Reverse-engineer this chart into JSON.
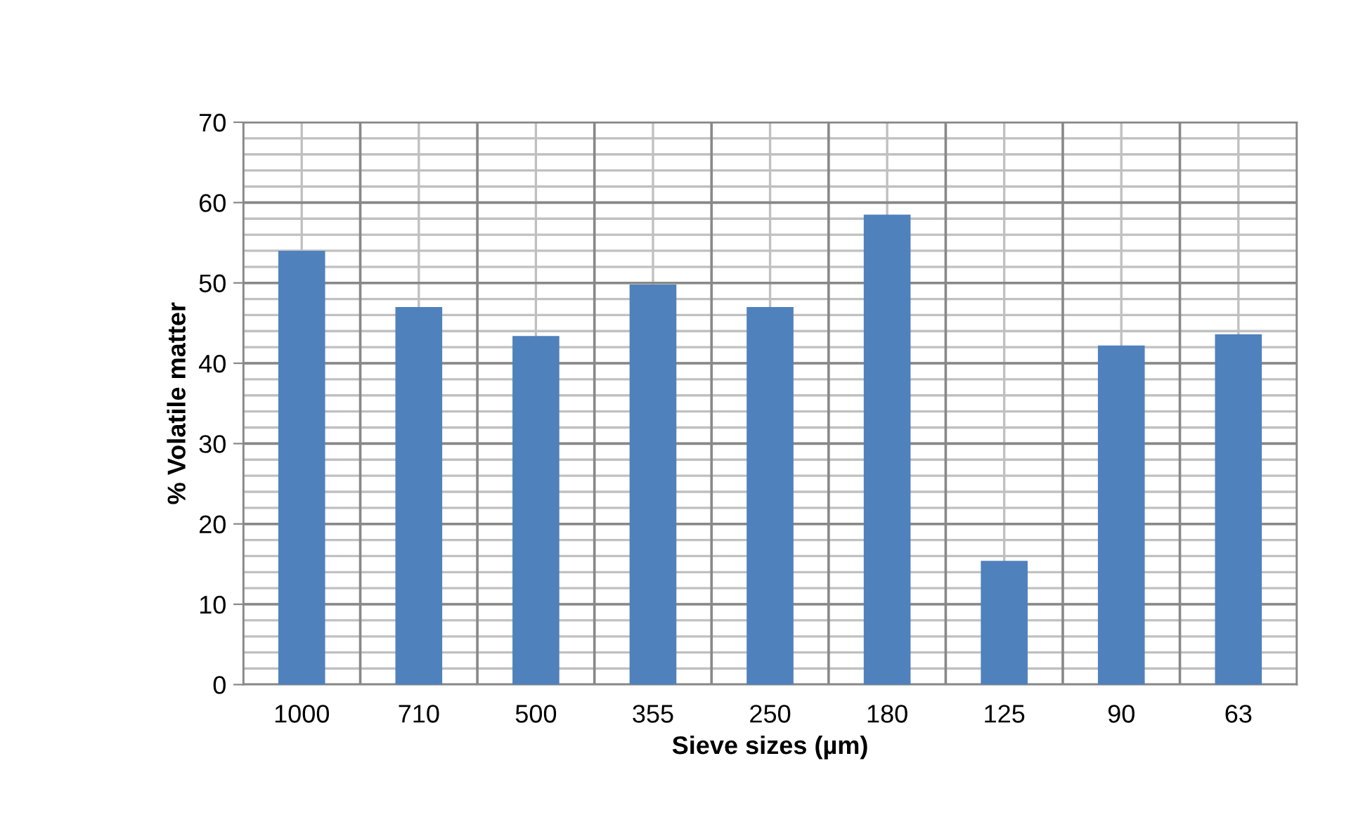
{
  "chart_data": {
    "type": "bar",
    "xlabel": "Sieve sizes (µm)",
    "ylabel": "% Volatile matter",
    "categories": [
      "1000",
      "710",
      "500",
      "355",
      "250",
      "180",
      "125",
      "90",
      "63"
    ],
    "values": [
      54,
      47,
      43.4,
      49.8,
      47,
      58.5,
      15.4,
      42.2,
      43.6
    ],
    "color": "#4f81bd",
    "ylim": [
      0,
      70
    ],
    "yticks": [
      0,
      10,
      20,
      30,
      40,
      50,
      60,
      70
    ],
    "grid": true
  }
}
